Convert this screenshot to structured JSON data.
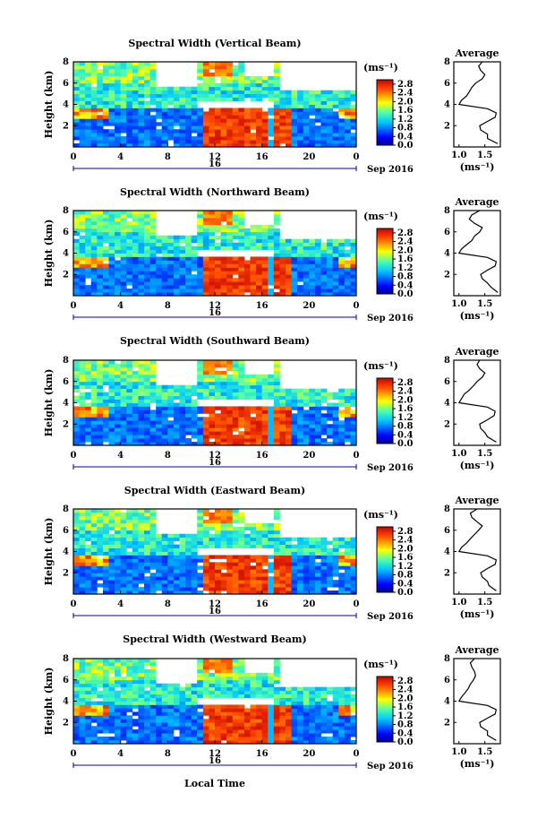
{
  "figure": {
    "xlabel": "Local Time",
    "x_ticks": [
      "0",
      "4",
      "8",
      "12",
      "16",
      "20",
      "0"
    ],
    "date_marker": "16",
    "date_label": "Sep 2016",
    "ylabel": "Height (km)",
    "y_ticks": [
      "8",
      "6",
      "4",
      "2"
    ],
    "colorbar_unit": "(ms⁻¹)",
    "colorbar_ticks": [
      "2.8",
      "2.4",
      "2.0",
      "1.6",
      "1.2",
      "0.8",
      "0.4",
      "0.0"
    ],
    "profile_title": "Average",
    "profile_xlabel": "(ms⁻¹)",
    "profile_y_ticks": [
      "8",
      "6",
      "4",
      "2"
    ]
  },
  "chart_data": [
    {
      "type": "heatmap",
      "title": "Spectral Width (Vertical Beam)",
      "x_range": [
        0,
        24
      ],
      "y_range": [
        0,
        8
      ],
      "unit": "ms^-1",
      "colorbar_range": [
        0.0,
        3.0
      ],
      "profile": {
        "type": "line",
        "title": "Average",
        "x_ticks": [
          "1.0",
          "1.5"
        ],
        "x_range": [
          0.9,
          1.8
        ],
        "height_km": [
          0.3,
          0.8,
          1.2,
          1.6,
          2.0,
          2.4,
          2.8,
          3.2,
          3.6,
          4.0,
          4.4,
          4.8,
          5.2,
          5.6,
          6.0,
          6.4,
          6.8,
          7.2,
          7.6,
          8.0
        ],
        "width": [
          1.75,
          1.55,
          1.55,
          1.42,
          1.4,
          1.55,
          1.7,
          1.72,
          1.55,
          1.0,
          1.05,
          1.15,
          1.2,
          1.25,
          1.32,
          1.45,
          1.5,
          1.42,
          1.38,
          1.45
        ]
      }
    },
    {
      "type": "heatmap",
      "title": "Spectral Width (Northward Beam)",
      "x_range": [
        0,
        24
      ],
      "y_range": [
        0,
        8
      ],
      "unit": "ms^-1",
      "colorbar_range": [
        0.0,
        3.0
      ],
      "profile": {
        "type": "line",
        "title": "Average",
        "x_ticks": [
          "1.0",
          "1.5"
        ],
        "x_range": [
          0.9,
          1.8
        ],
        "height_km": [
          0.3,
          0.8,
          1.2,
          1.6,
          2.0,
          2.4,
          2.8,
          3.2,
          3.6,
          4.0,
          4.4,
          4.8,
          5.2,
          5.6,
          6.0,
          6.4,
          6.8,
          7.2,
          7.6,
          8.0
        ],
        "width": [
          1.75,
          1.62,
          1.55,
          1.45,
          1.42,
          1.55,
          1.7,
          1.72,
          1.55,
          1.0,
          1.05,
          1.15,
          1.25,
          1.3,
          1.4,
          1.45,
          1.3,
          1.2,
          1.25,
          1.4
        ]
      }
    },
    {
      "type": "heatmap",
      "title": "Spectral Width (Southward Beam)",
      "x_range": [
        0,
        24
      ],
      "y_range": [
        0,
        8
      ],
      "unit": "ms^-1",
      "colorbar_range": [
        0.0,
        3.0
      ],
      "profile": {
        "type": "line",
        "title": "Average",
        "x_ticks": [
          "1.0",
          "1.5"
        ],
        "x_range": [
          0.9,
          1.8
        ],
        "height_km": [
          0.3,
          0.8,
          1.2,
          1.6,
          2.0,
          2.4,
          2.8,
          3.2,
          3.6,
          4.0,
          4.4,
          4.8,
          5.2,
          5.6,
          6.0,
          6.4,
          6.8,
          7.2,
          7.6,
          8.0
        ],
        "width": [
          1.72,
          1.55,
          1.5,
          1.42,
          1.4,
          1.55,
          1.68,
          1.7,
          1.55,
          1.0,
          1.05,
          1.1,
          1.2,
          1.28,
          1.35,
          1.45,
          1.5,
          1.4,
          1.35,
          1.4
        ]
      }
    },
    {
      "type": "heatmap",
      "title": "Spectral Width (Eastward Beam)",
      "x_range": [
        0,
        24
      ],
      "y_range": [
        0,
        8
      ],
      "unit": "ms^-1",
      "colorbar_range": [
        0.0,
        3.0
      ],
      "profile": {
        "type": "line",
        "title": "Average",
        "x_ticks": [
          "1.0",
          "1.5"
        ],
        "x_range": [
          0.9,
          1.8
        ],
        "height_km": [
          0.3,
          0.8,
          1.2,
          1.6,
          2.0,
          2.4,
          2.8,
          3.2,
          3.6,
          4.0,
          4.4,
          4.8,
          5.2,
          5.6,
          6.0,
          6.4,
          6.8,
          7.2,
          7.6,
          8.0
        ],
        "width": [
          1.72,
          1.58,
          1.55,
          1.45,
          1.42,
          1.55,
          1.7,
          1.72,
          1.55,
          1.0,
          1.05,
          1.15,
          1.22,
          1.3,
          1.38,
          1.45,
          1.35,
          1.25,
          1.22,
          1.35
        ]
      }
    },
    {
      "type": "heatmap",
      "title": "Spectral Width (Westward Beam)",
      "x_range": [
        0,
        24
      ],
      "y_range": [
        0,
        8
      ],
      "unit": "ms^-1",
      "colorbar_range": [
        0.0,
        3.0
      ],
      "profile": {
        "type": "line",
        "title": "Average",
        "x_ticks": [
          "1.0",
          "1.5"
        ],
        "x_range": [
          0.9,
          1.8
        ],
        "height_km": [
          0.3,
          0.8,
          1.2,
          1.6,
          2.0,
          2.4,
          2.8,
          3.2,
          3.6,
          4.0,
          4.4,
          4.8,
          5.2,
          5.6,
          6.0,
          6.4,
          6.8,
          7.2,
          7.6,
          8.0
        ],
        "width": [
          1.72,
          1.55,
          1.55,
          1.42,
          1.4,
          1.55,
          1.7,
          1.72,
          1.55,
          1.0,
          1.05,
          1.12,
          1.18,
          1.22,
          1.28,
          1.32,
          1.3,
          1.25,
          1.22,
          1.3
        ]
      }
    }
  ]
}
